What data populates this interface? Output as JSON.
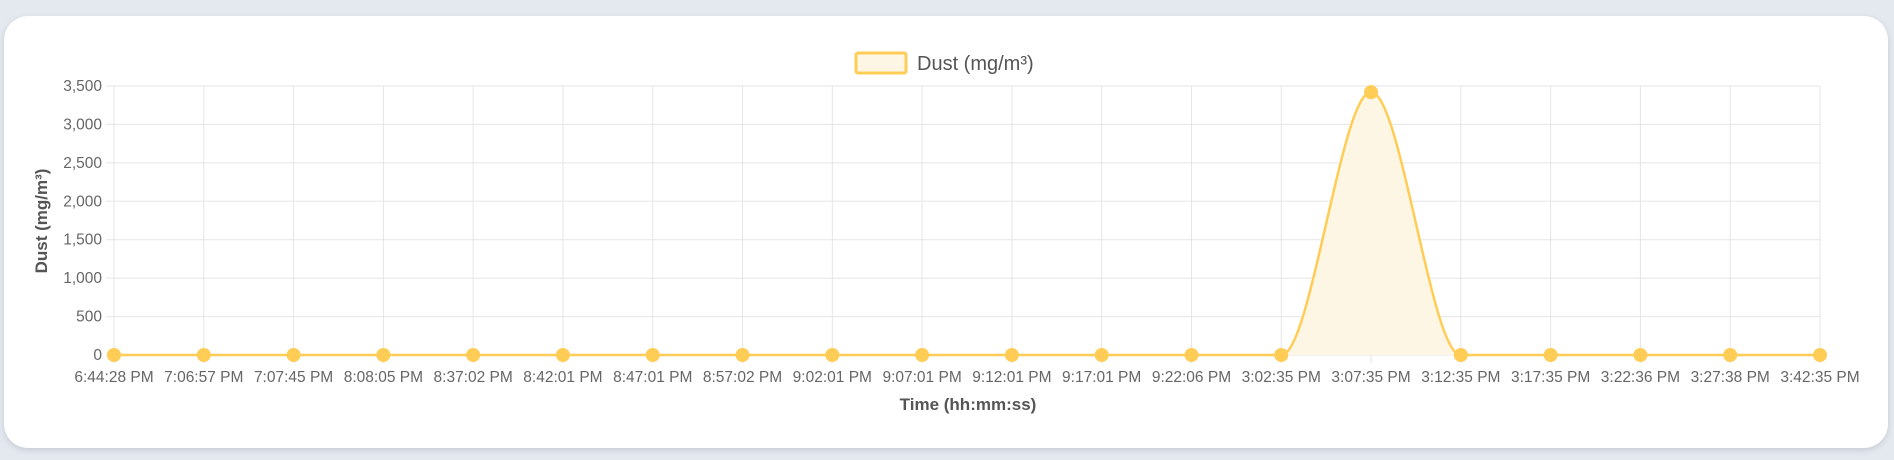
{
  "chart_data": {
    "type": "area",
    "series": [
      {
        "name": "Dust (mg/m³)",
        "values": [
          0,
          0,
          0,
          0,
          0,
          0,
          0,
          0,
          0,
          0,
          0,
          0,
          0,
          0,
          3420,
          0,
          0,
          0,
          0,
          0
        ]
      }
    ],
    "categories": [
      "6:44:28 PM",
      "7:06:57 PM",
      "7:07:45 PM",
      "8:08:05 PM",
      "8:37:02 PM",
      "8:42:01 PM",
      "8:47:01 PM",
      "8:57:02 PM",
      "9:02:01 PM",
      "9:07:01 PM",
      "9:12:01 PM",
      "9:17:01 PM",
      "9:22:06 PM",
      "3:02:35 PM",
      "3:07:35 PM",
      "3:12:35 PM",
      "3:17:35 PM",
      "3:22:36 PM",
      "3:27:38 PM",
      "3:42:35 PM"
    ],
    "yticks": [
      "0",
      "500",
      "1,000",
      "1,500",
      "2,000",
      "2,500",
      "3,000",
      "3,500"
    ],
    "ylim": [
      0,
      3500
    ],
    "xlabel": "Time (hh:mm:ss)",
    "ylabel": "Dust (mg/m³)",
    "legend": "top-center",
    "grid": true,
    "colors": {
      "line": "#ffcd56",
      "fill": "#fdf6e5",
      "point": "#ffcd56",
      "grid": "#e5e5e5"
    }
  }
}
